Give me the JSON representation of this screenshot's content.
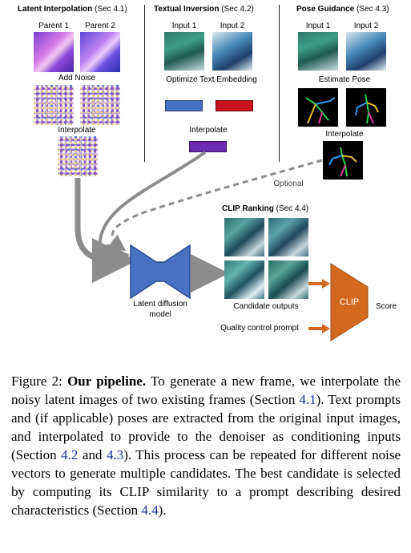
{
  "sections": {
    "latent": {
      "title": "Latent Interpolation",
      "sec": "(Sec 4.1)",
      "parent1": "Parent 1",
      "parent2": "Parent 2",
      "add_noise": "Add Noise",
      "interpolate": "Interpolate"
    },
    "textual": {
      "title": "Textual Inversion",
      "sec": "(Sec 4.2)",
      "input1": "Input 1",
      "input2": "Input 2",
      "optimize": "Optimize Text Embedding",
      "interpolate": "Interpolate"
    },
    "pose": {
      "title": "Pose Guidance",
      "sec": "(Sec 4.3)",
      "input1": "Input 1",
      "input2": "Input 2",
      "estimate": "Estimate Pose",
      "interpolate": "Interpolate",
      "optional": "Optional"
    }
  },
  "clip": {
    "title": "CLIP Ranking",
    "sec": "(Sec 4.4)",
    "candidates": "Candidate outputs",
    "quality": "Quality control prompt",
    "clip_label": "CLIP",
    "score": "Score"
  },
  "diffusion": {
    "line1": "Latent diffusion",
    "line2": "model"
  },
  "colors": {
    "embed_blue": "#4a72c4",
    "embed_red": "#c8141e",
    "embed_purple": "#6a2ab0",
    "unet_blue": "#4a72c4",
    "clip_orange": "#d2691e",
    "arrow_gray": "#8c8c8c",
    "ref_blue": "#1a2f9a"
  },
  "caption": {
    "prefix": "Figure 2:",
    "bold": "Our pipeline.",
    "s1": "To generate a new frame, we interpolate the noisy latent images of two existing frames (Section",
    "r1": "4.1",
    "s2": "). Text prompts and (if applicable) poses are extracted from the original input images, and interpolated to provide to the denoiser as conditioning inputs (Section",
    "r2": "4.2",
    "s3": "and",
    "r3": "4.3",
    "s4": "). This process can be repeated for different noise vectors to generate multiple candidates. The best candidate is selected by computing its CLIP similarity to a prompt describing desired characteristics (Section",
    "r4": "4.4",
    "s5": ")."
  }
}
